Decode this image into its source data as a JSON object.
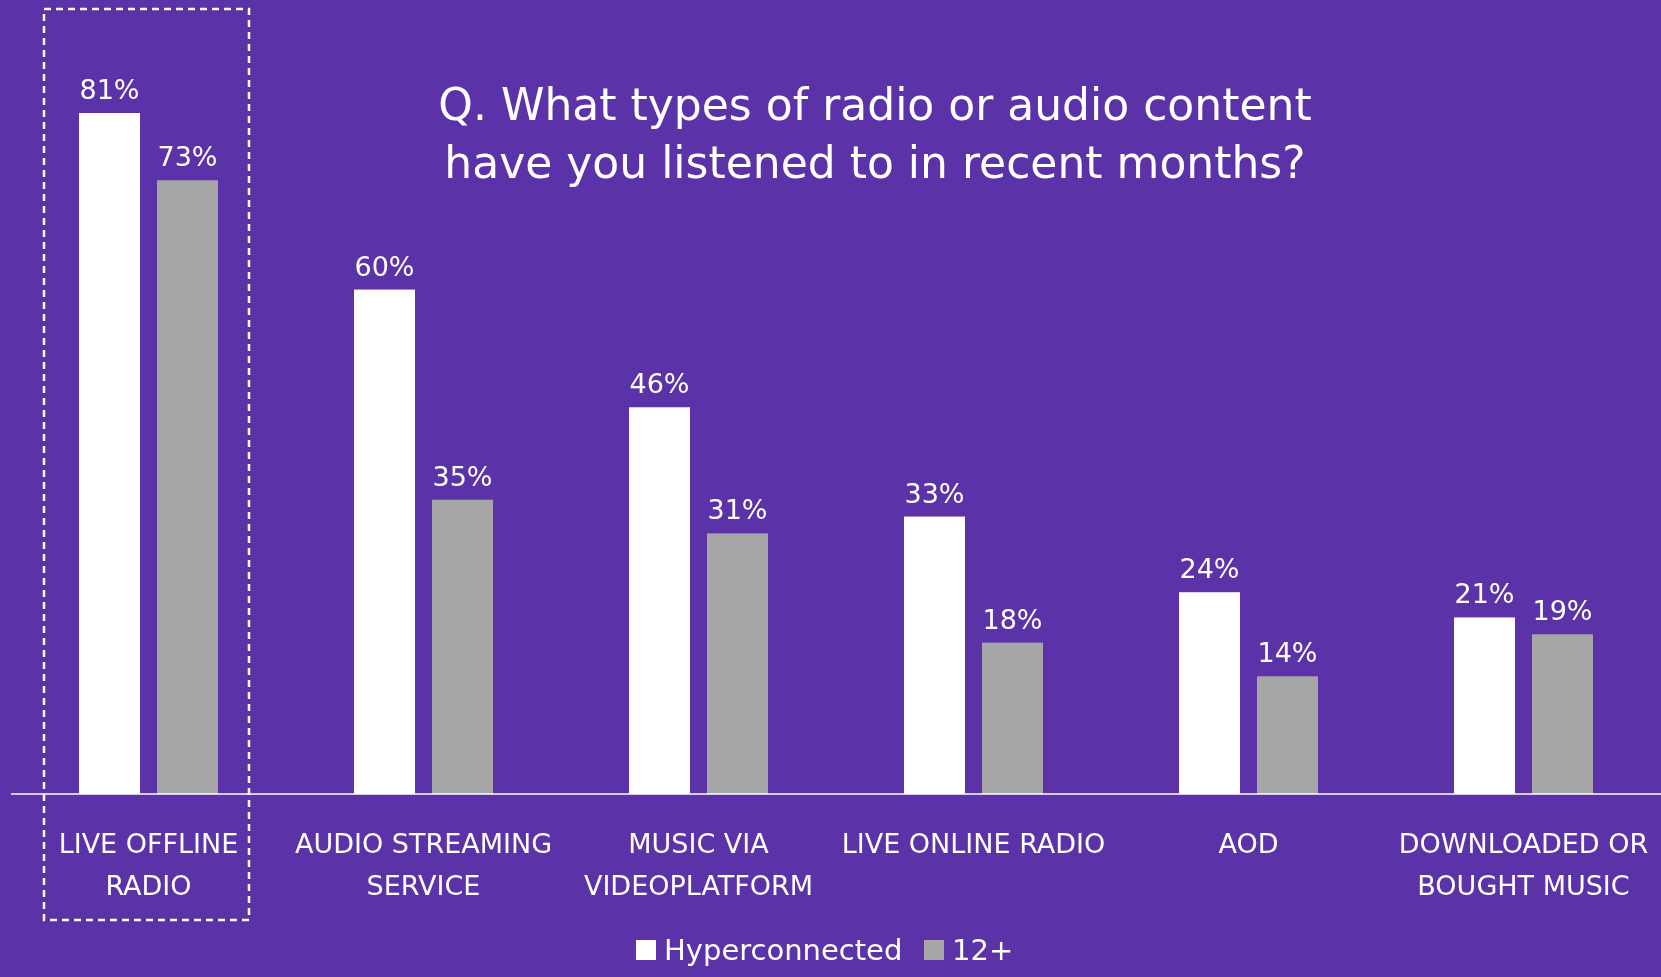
{
  "chart_data": {
    "type": "bar",
    "title": "Q. What types of radio or audio content have you listened to in recent months?",
    "categories": [
      "LIVE OFFLINE RADIO",
      "AUDIO STREAMING SERVICE",
      "MUSIC VIA VIDEOPLATFORM",
      "LIVE ONLINE RADIO",
      "AOD",
      "DOWNLOADED OR BOUGHT MUSIC"
    ],
    "series": [
      {
        "name": "Hyperconnected",
        "color": "#ffffff",
        "values": [
          81,
          60,
          46,
          33,
          24,
          21
        ],
        "value_labels": [
          "81%",
          "60%",
          "46%",
          "33%",
          "24%",
          "21%"
        ]
      },
      {
        "name": "12+",
        "color": "#a6a6a6",
        "values": [
          73,
          35,
          31,
          18,
          14,
          19
        ],
        "value_labels": [
          "73%",
          "35%",
          "31%",
          "18%",
          "14%",
          "19%"
        ]
      }
    ],
    "legend": "bottom",
    "grid": false
  }
}
